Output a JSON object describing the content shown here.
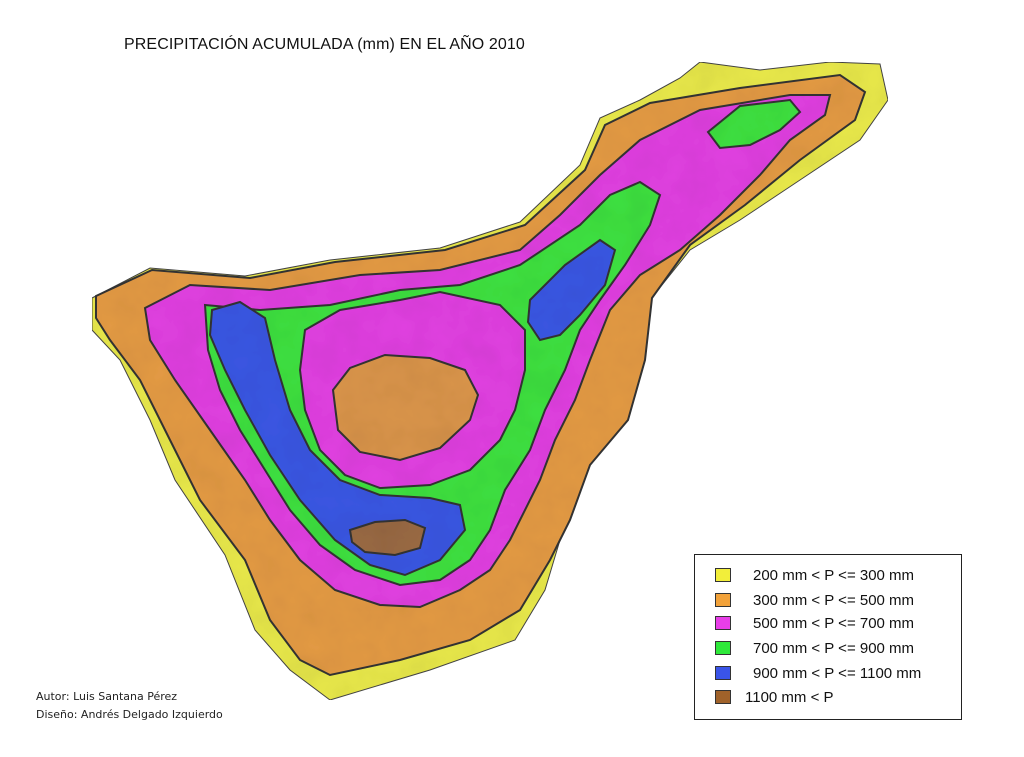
{
  "title": "PRECIPITACIÓN ACUMULADA (mm) EN EL AÑO 2010",
  "legend": {
    "items": [
      {
        "label": "200 mm < P <= 300 mm",
        "color": "#f2ee3a"
      },
      {
        "label": "300 mm < P <= 500 mm",
        "color": "#f2a23a"
      },
      {
        "label": "500 mm < P <= 700 mm",
        "color": "#e83ee8"
      },
      {
        "label": "700 mm < P <= 900 mm",
        "color": "#2ee83a"
      },
      {
        "label": "900 mm < P <= 1100 mm",
        "color": "#3a54e8"
      },
      {
        "label": "1100 mm < P",
        "color": "#a0622a"
      }
    ]
  },
  "credits": {
    "author": "Autor: Luis Santana Pérez",
    "design": "Diseño: Andrés Delgado Izquierdo"
  }
}
